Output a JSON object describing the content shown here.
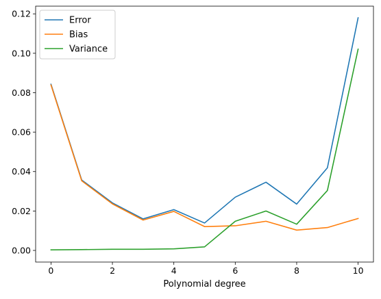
{
  "chart_data": {
    "type": "line",
    "title": "",
    "xlabel": "Polynomial degree",
    "ylabel": "",
    "x": [
      0,
      1,
      2,
      3,
      4,
      5,
      6,
      7,
      8,
      9,
      10
    ],
    "xlim": [
      -0.5,
      10.5
    ],
    "ylim": [
      -0.0059,
      0.1239
    ],
    "xticks": [
      0,
      2,
      4,
      6,
      8,
      10
    ],
    "xtick_labels": [
      "0",
      "2",
      "4",
      "6",
      "8",
      "10"
    ],
    "yticks": [
      0.0,
      0.02,
      0.04,
      0.06,
      0.08,
      0.1,
      0.12
    ],
    "ytick_labels": [
      "0.00",
      "0.02",
      "0.04",
      "0.06",
      "0.08",
      "0.10",
      "0.12"
    ],
    "grid": false,
    "legend_position": "top-left",
    "series": [
      {
        "name": "Error",
        "color": "#1f77b4",
        "values": [
          0.0843,
          0.0357,
          0.0241,
          0.016,
          0.0207,
          0.0139,
          0.027,
          0.0346,
          0.0235,
          0.0419,
          0.118
        ]
      },
      {
        "name": "Bias",
        "color": "#ff7f0e",
        "values": [
          0.0839,
          0.0353,
          0.0236,
          0.0154,
          0.0198,
          0.0121,
          0.0125,
          0.0148,
          0.0103,
          0.0116,
          0.0162
        ]
      },
      {
        "name": "Variance",
        "color": "#2ca02c",
        "values": [
          0.0003,
          0.0004,
          0.0006,
          0.0006,
          0.0008,
          0.0018,
          0.0148,
          0.02,
          0.0133,
          0.0304,
          0.1021
        ]
      }
    ]
  }
}
